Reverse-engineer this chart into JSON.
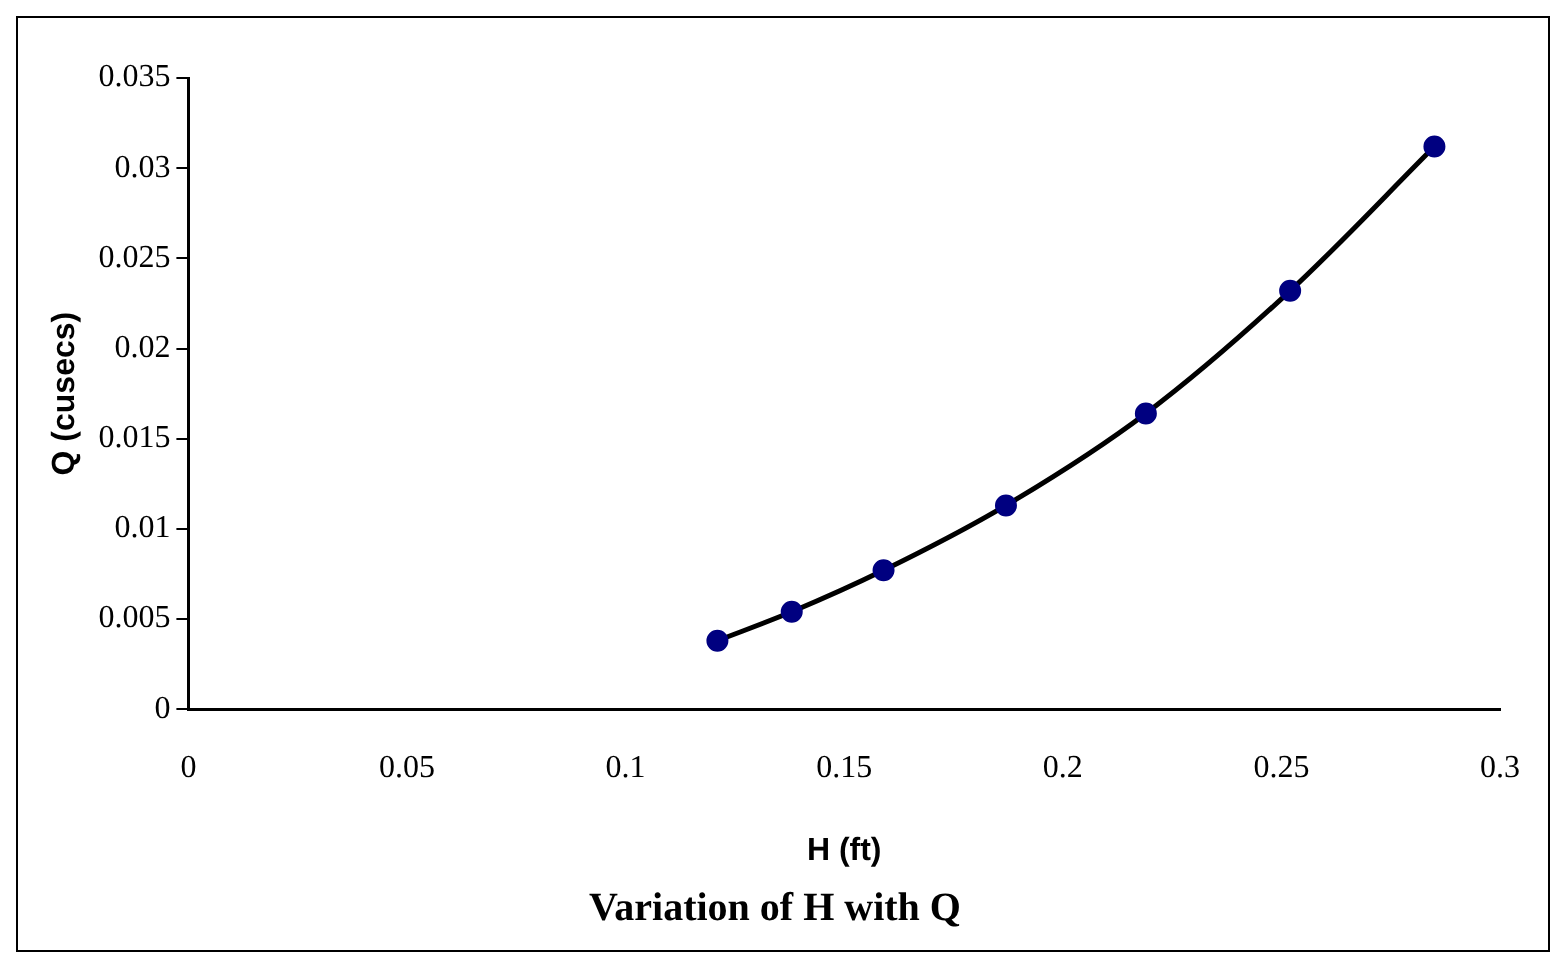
{
  "chart_data": {
    "type": "scatter",
    "title": "Variation of H with Q",
    "xlabel": "H (ft)",
    "ylabel": "Q (cusecs)",
    "xlim": [
      0,
      0.3
    ],
    "xticks": [
      0,
      0.05,
      0.1,
      0.15,
      0.2,
      0.25,
      0.3
    ],
    "ylim": [
      0,
      0.035
    ],
    "yticks": [
      0,
      0.005,
      0.01,
      0.015,
      0.02,
      0.025,
      0.03,
      0.035
    ],
    "grid": false,
    "legend": false,
    "marker": "circle",
    "series": [
      {
        "color": "#000080",
        "x": [
          0.121,
          0.138,
          0.159,
          0.187,
          0.219,
          0.252,
          0.285
        ],
        "values": [
          0.0038,
          0.0054,
          0.0077,
          0.0113,
          0.0164,
          0.0232,
          0.0312
        ]
      },
      {
        "type": "line",
        "color": "#000000",
        "marker": "none",
        "line_style": "solid",
        "x": [
          0.121,
          0.138,
          0.159,
          0.187,
          0.219,
          0.252,
          0.285
        ],
        "values": [
          0.0038,
          0.0054,
          0.0077,
          0.0113,
          0.0164,
          0.0232,
          0.0312
        ]
      }
    ]
  }
}
